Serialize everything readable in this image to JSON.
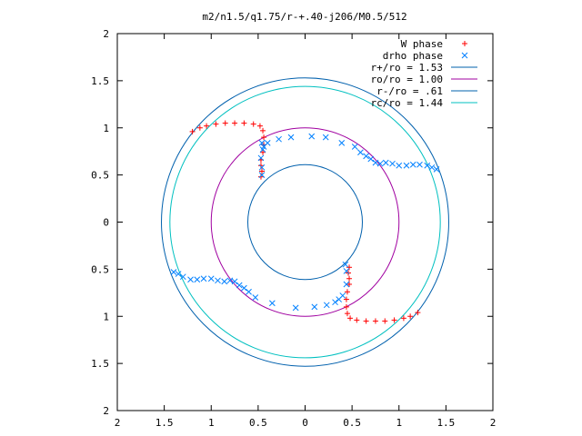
{
  "chart_data": {
    "type": "scatter",
    "title": "m2/n1.5/q1.75/r-+.40-j206/M0.5/512",
    "xlabel": "",
    "ylabel": "",
    "xlim": [
      -2,
      2
    ],
    "ylim": [
      -2,
      2
    ],
    "x_tick_labels": [
      "2",
      "1.5",
      "1",
      "0.5",
      "0",
      "0.5",
      "1",
      "1.5",
      "2"
    ],
    "y_tick_labels": [
      "2",
      "1.5",
      "1",
      "0.5",
      "0",
      "0.5",
      "1",
      "1.5",
      "2"
    ],
    "grid": false,
    "legend_position": "top-right",
    "series": [
      {
        "name": "W phase",
        "marker": "plus",
        "color": "#ff0000",
        "points": [
          [
            -1.2,
            0.96
          ],
          [
            -1.12,
            1.0
          ],
          [
            -1.05,
            1.02
          ],
          [
            -0.95,
            1.04
          ],
          [
            -0.85,
            1.05
          ],
          [
            -0.75,
            1.05
          ],
          [
            -0.65,
            1.05
          ],
          [
            -0.55,
            1.04
          ],
          [
            -0.48,
            1.02
          ],
          [
            -0.45,
            0.97
          ],
          [
            -0.44,
            0.9
          ],
          [
            -0.44,
            0.82
          ],
          [
            -0.45,
            0.74
          ],
          [
            -0.47,
            0.66
          ],
          [
            -0.47,
            0.6
          ],
          [
            -0.46,
            0.54
          ],
          [
            -0.47,
            0.48
          ],
          [
            1.2,
            -0.96
          ],
          [
            1.12,
            -1.0
          ],
          [
            1.05,
            -1.02
          ],
          [
            0.95,
            -1.04
          ],
          [
            0.85,
            -1.05
          ],
          [
            0.75,
            -1.05
          ],
          [
            0.65,
            -1.05
          ],
          [
            0.55,
            -1.04
          ],
          [
            0.48,
            -1.02
          ],
          [
            0.45,
            -0.97
          ],
          [
            0.44,
            -0.9
          ],
          [
            0.44,
            -0.82
          ],
          [
            0.45,
            -0.74
          ],
          [
            0.47,
            -0.66
          ],
          [
            0.47,
            -0.6
          ],
          [
            0.46,
            -0.54
          ],
          [
            0.47,
            -0.48
          ]
        ]
      },
      {
        "name": "drho phase",
        "marker": "cross",
        "color": "#0080ff",
        "points": [
          [
            1.4,
            0.56
          ],
          [
            1.35,
            0.58
          ],
          [
            1.3,
            0.6
          ],
          [
            1.22,
            0.61
          ],
          [
            1.15,
            0.61
          ],
          [
            1.08,
            0.6
          ],
          [
            1.0,
            0.6
          ],
          [
            0.93,
            0.62
          ],
          [
            0.86,
            0.63
          ],
          [
            0.8,
            0.62
          ],
          [
            0.75,
            0.63
          ],
          [
            0.7,
            0.67
          ],
          [
            0.65,
            0.7
          ],
          [
            0.59,
            0.74
          ],
          [
            0.53,
            0.8
          ],
          [
            0.39,
            0.84
          ],
          [
            0.22,
            0.9
          ],
          [
            0.07,
            0.91
          ],
          [
            -0.15,
            0.9
          ],
          [
            -0.28,
            0.88
          ],
          [
            -0.4,
            0.84
          ],
          [
            -0.46,
            0.84
          ],
          [
            -0.45,
            0.77
          ],
          [
            -0.47,
            0.68
          ],
          [
            -0.46,
            0.58
          ],
          [
            -0.46,
            0.5
          ],
          [
            -0.44,
            0.8
          ],
          [
            -1.4,
            -0.53
          ],
          [
            -1.35,
            -0.55
          ],
          [
            -1.3,
            -0.58
          ],
          [
            -1.22,
            -0.61
          ],
          [
            -1.15,
            -0.61
          ],
          [
            -1.08,
            -0.6
          ],
          [
            -1.0,
            -0.6
          ],
          [
            -0.93,
            -0.62
          ],
          [
            -0.86,
            -0.63
          ],
          [
            -0.8,
            -0.62
          ],
          [
            -0.75,
            -0.63
          ],
          [
            -0.7,
            -0.67
          ],
          [
            -0.65,
            -0.7
          ],
          [
            -0.6,
            -0.74
          ],
          [
            -0.53,
            -0.8
          ],
          [
            -0.35,
            -0.86
          ],
          [
            -0.1,
            -0.91
          ],
          [
            0.1,
            -0.9
          ],
          [
            0.23,
            -0.88
          ],
          [
            0.32,
            -0.85
          ],
          [
            0.36,
            -0.82
          ],
          [
            0.4,
            -0.78
          ],
          [
            0.44,
            -0.66
          ],
          [
            0.44,
            -0.52
          ],
          [
            0.43,
            -0.45
          ]
        ]
      },
      {
        "name": "r+/ro = 1.53",
        "type": "circle",
        "radius": 1.53,
        "color": "#0060ad"
      },
      {
        "name": "ro/ro = 1.00",
        "type": "circle",
        "radius": 1.0,
        "color": "#a000a0"
      },
      {
        "name": "r-/ro = .61",
        "type": "circle",
        "radius": 0.61,
        "color": "#0060ad"
      },
      {
        "name": "rc/ro = 1.44",
        "type": "circle",
        "radius": 1.44,
        "color": "#00c0c0"
      }
    ]
  }
}
